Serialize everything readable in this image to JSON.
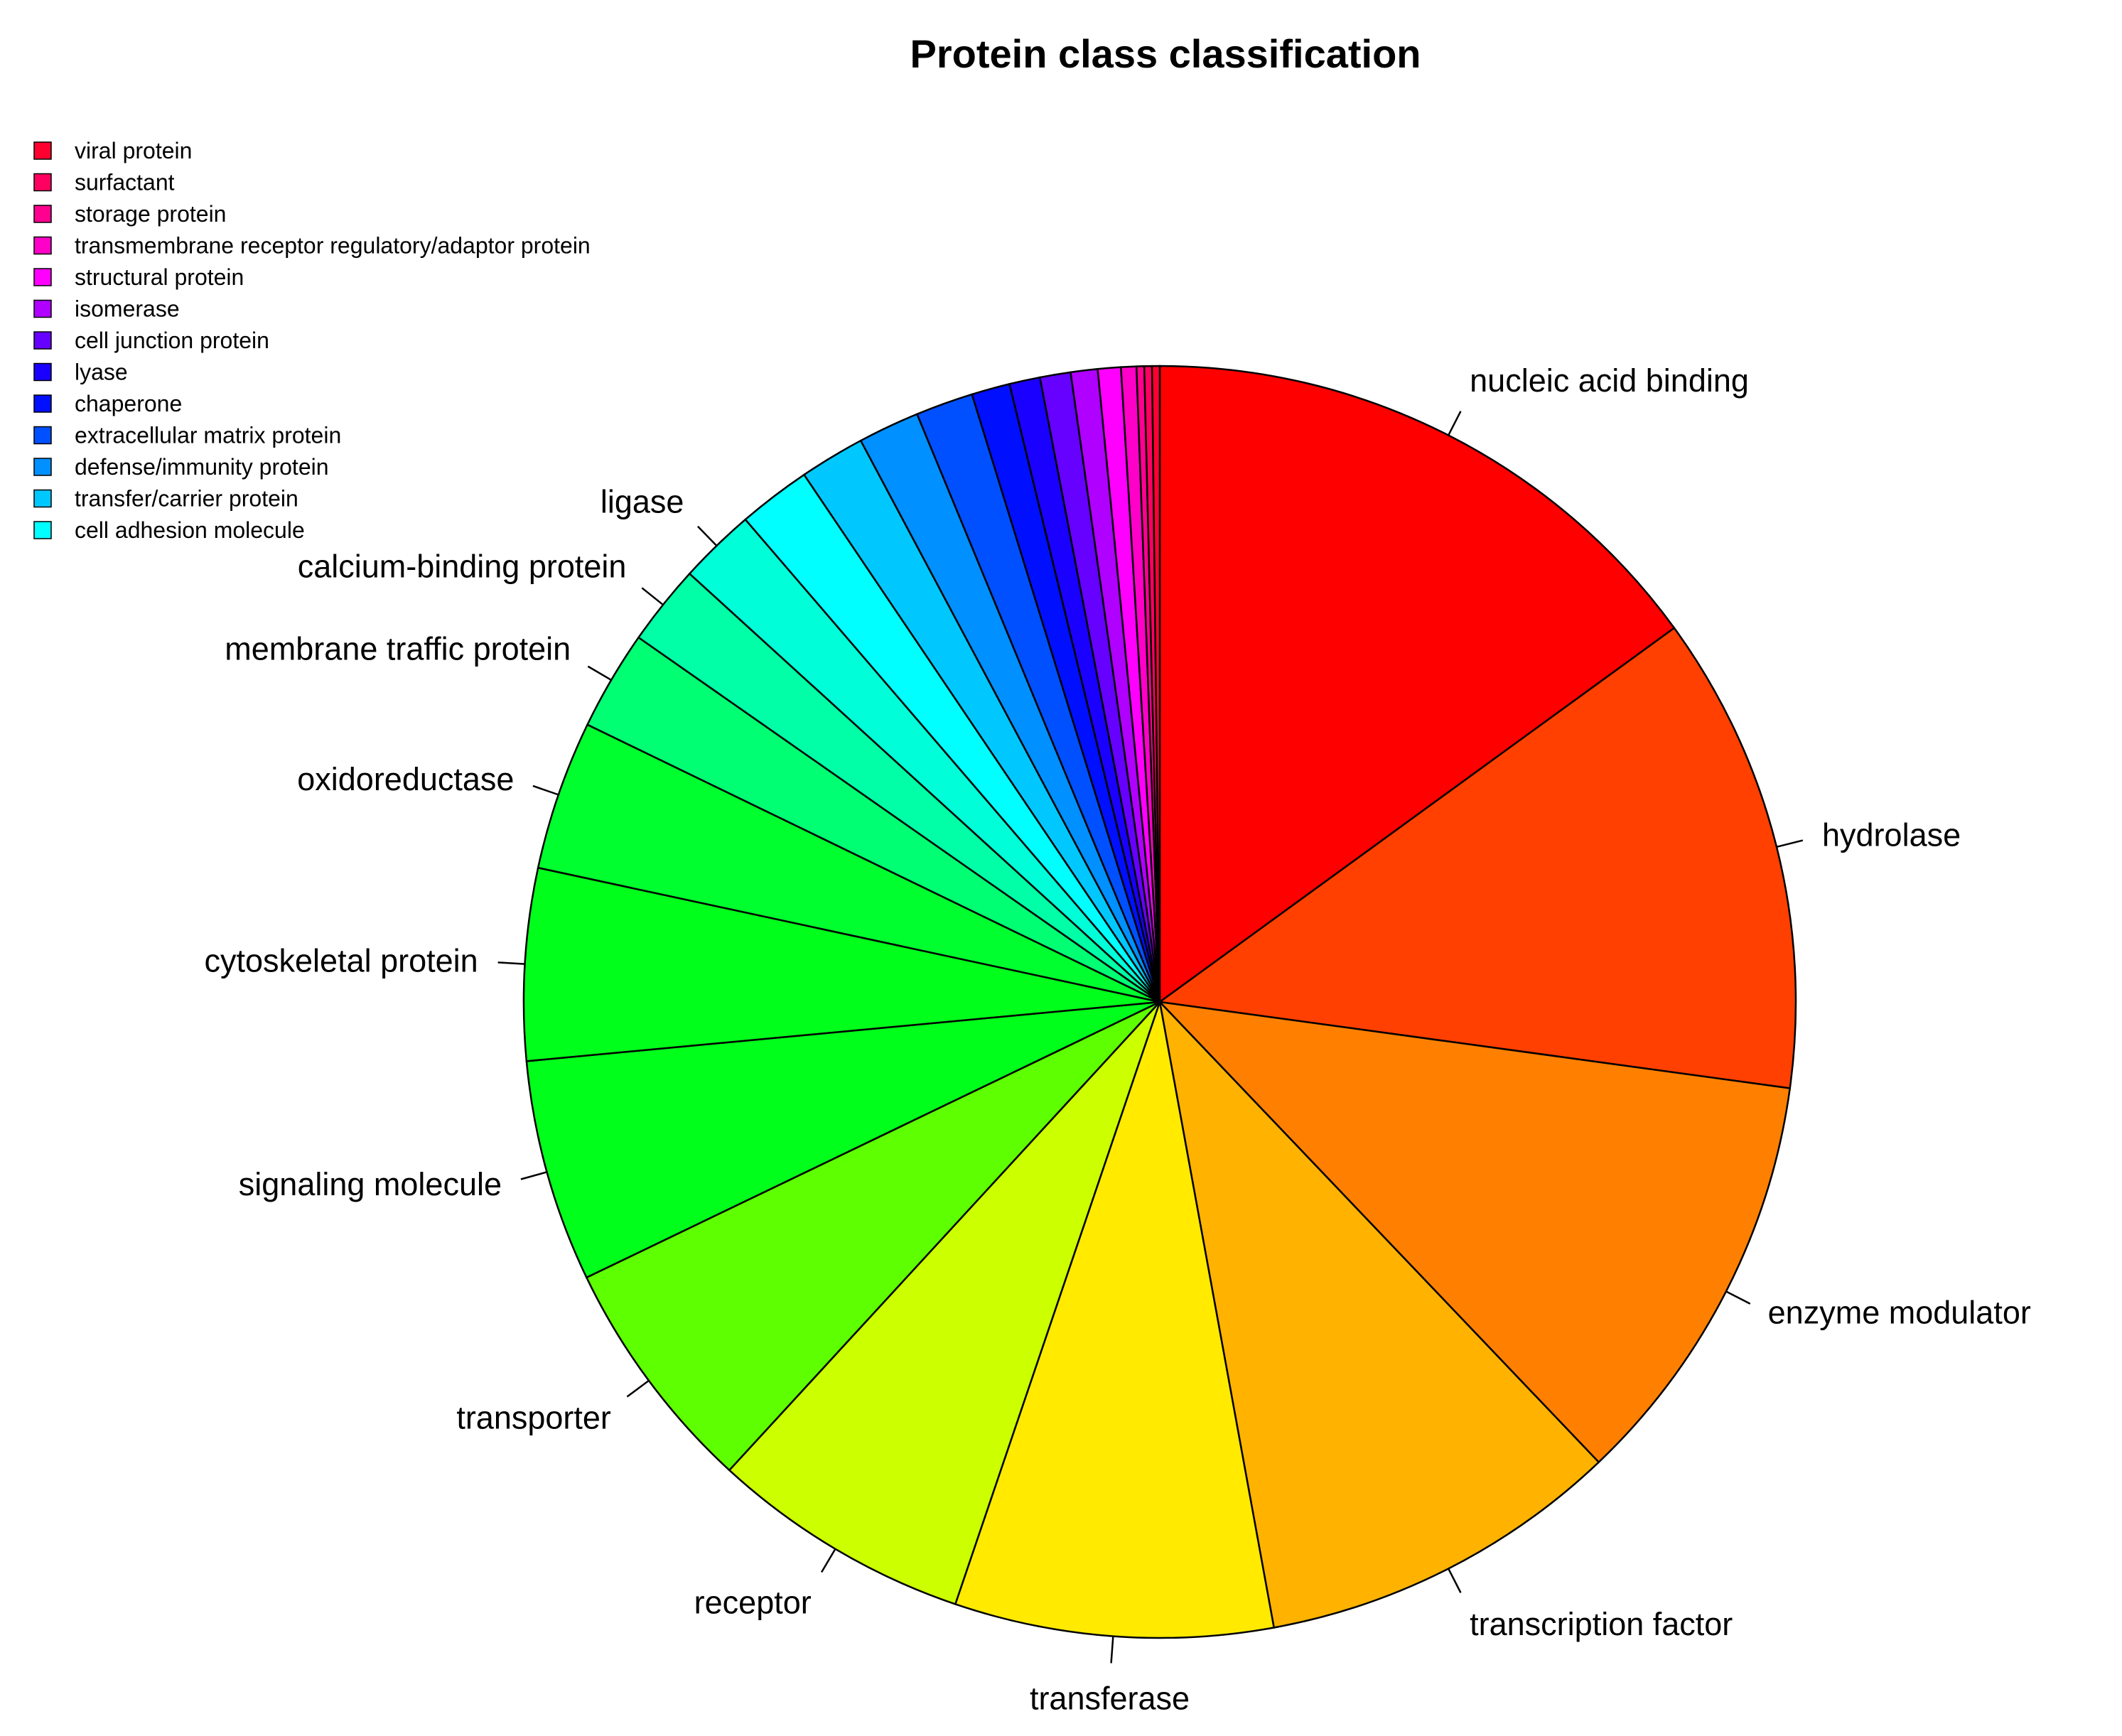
{
  "chart_data": {
    "type": "pie",
    "title": "Protein class classification",
    "start_angle_deg": 90,
    "direction": "clockwise",
    "legend_position": "top-left",
    "slices": [
      {
        "label": "nucleic acid binding",
        "value": 15.4,
        "color": "#FF0000",
        "labeled": true
      },
      {
        "label": "hydrolase",
        "value": 12.5,
        "color": "#FF4000",
        "labeled": true
      },
      {
        "label": "enzyme modulator",
        "value": 11.0,
        "color": "#FF8000",
        "labeled": true
      },
      {
        "label": "transcription factor",
        "value": 9.5,
        "color": "#FFB300",
        "labeled": true
      },
      {
        "label": "transferase",
        "value": 8.3,
        "color": "#FFEA00",
        "labeled": true
      },
      {
        "label": "receptor",
        "value": 6.8,
        "color": "#CCFF00",
        "labeled": true
      },
      {
        "label": "transporter",
        "value": 6.2,
        "color": "#5EFF00",
        "labeled": true
      },
      {
        "label": "signaling molecule",
        "value": 5.8,
        "color": "#00FF1A",
        "labeled": true
      },
      {
        "label": "cytoskeletal protein",
        "value": 5.0,
        "color": "#00FF1A",
        "labeled": true
      },
      {
        "label": "oxidoreductase",
        "value": 3.9,
        "color": "#00FF2E",
        "labeled": true
      },
      {
        "label": "membrane traffic protein",
        "value": 2.6,
        "color": "#00FF73",
        "labeled": true
      },
      {
        "label": "calcium-binding protein",
        "value": 2.1,
        "color": "#00FFA6",
        "labeled": true
      },
      {
        "label": "ligase",
        "value": 2.0,
        "color": "#00FFD9",
        "labeled": true
      },
      {
        "label": "cell adhesion molecule",
        "value": 1.9,
        "color": "#00FFFF",
        "labeled": false
      },
      {
        "label": "transfer/carrier protein",
        "value": 1.7,
        "color": "#00C8FF",
        "labeled": false
      },
      {
        "label": "defense/immunity protein",
        "value": 1.6,
        "color": "#0090FF",
        "labeled": false
      },
      {
        "label": "extracellular matrix protein",
        "value": 1.5,
        "color": "#0050FF",
        "labeled": false
      },
      {
        "label": "chaperone",
        "value": 1.0,
        "color": "#0010FF",
        "labeled": false
      },
      {
        "label": "lyase",
        "value": 0.8,
        "color": "#1A00FF",
        "labeled": false
      },
      {
        "label": "cell junction protein",
        "value": 0.8,
        "color": "#6600FF",
        "labeled": false
      },
      {
        "label": "isomerase",
        "value": 0.7,
        "color": "#B000FF",
        "labeled": false
      },
      {
        "label": "structural protein",
        "value": 0.6,
        "color": "#FF00FF",
        "labeled": false
      },
      {
        "label": "transmembrane receptor regulatory/adaptor protein",
        "value": 0.4,
        "color": "#FF00C8",
        "labeled": false
      },
      {
        "label": "storage protein",
        "value": 0.2,
        "color": "#FF0090",
        "labeled": false
      },
      {
        "label": "surfactant",
        "value": 0.2,
        "color": "#FF0060",
        "labeled": false
      },
      {
        "label": "viral protein",
        "value": 0.2,
        "color": "#FF0030",
        "labeled": false
      }
    ],
    "legend": [
      {
        "label": "viral protein",
        "color": "#FF0030"
      },
      {
        "label": "surfactant",
        "color": "#FF0060"
      },
      {
        "label": "storage protein",
        "color": "#FF0090"
      },
      {
        "label": "transmembrane receptor regulatory/adaptor protein",
        "color": "#FF00C8"
      },
      {
        "label": "structural protein",
        "color": "#FF00FF"
      },
      {
        "label": "isomerase",
        "color": "#B000FF"
      },
      {
        "label": "cell junction protein",
        "color": "#6600FF"
      },
      {
        "label": "lyase",
        "color": "#1A00FF"
      },
      {
        "label": "chaperone",
        "color": "#0010FF"
      },
      {
        "label": "extracellular matrix protein",
        "color": "#0050FF"
      },
      {
        "label": "defense/immunity protein",
        "color": "#0090FF"
      },
      {
        "label": "transfer/carrier protein",
        "color": "#00C8FF"
      },
      {
        "label": "cell adhesion molecule",
        "color": "#00FFFF"
      }
    ]
  }
}
